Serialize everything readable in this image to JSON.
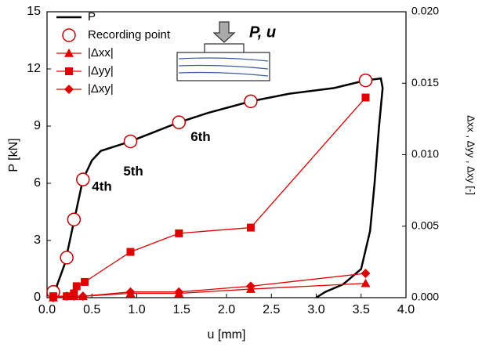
{
  "chart_data": {
    "type": "line",
    "xlabel": "u [mm]",
    "ylabel": "P [kN]",
    "y2label": "Δxx , Δyy , Δxy  [-]",
    "annotations": [
      "4th",
      "5th",
      "6th",
      "P, u"
    ],
    "xlim": [
      0,
      4
    ],
    "ylim": [
      0,
      15
    ],
    "y2lim": [
      0,
      0.02
    ],
    "xticks": [
      {
        "value": 0,
        "label": "0.0"
      },
      {
        "value": 0.5,
        "label": "0.5"
      },
      {
        "value": 1,
        "label": "1.0"
      },
      {
        "value": 1.5,
        "label": "1.5"
      },
      {
        "value": 2,
        "label": "2.0"
      },
      {
        "value": 2.5,
        "label": "2.5"
      },
      {
        "value": 3,
        "label": "3.0"
      },
      {
        "value": 3.5,
        "label": "3.5"
      },
      {
        "value": 4,
        "label": "4.0"
      }
    ],
    "yticks": [
      0,
      3,
      6,
      9,
      12,
      15
    ],
    "y2ticks": [
      {
        "value": 0,
        "label": "0.000"
      },
      {
        "value": 0.005,
        "label": "0.005"
      },
      {
        "value": 0.01,
        "label": "0.010"
      },
      {
        "value": 0.015,
        "label": "0.015"
      },
      {
        "value": 0.02,
        "label": "0.020"
      }
    ],
    "series": [
      {
        "name": "P",
        "color": "#000000",
        "marker": "none",
        "x": [
          0.05,
          0.1,
          0.2,
          0.3,
          0.4,
          0.5,
          0.6,
          0.8,
          0.93,
          1.2,
          1.47,
          1.8,
          2.27,
          2.7,
          3.2,
          3.55,
          3.72,
          3.74,
          3.7,
          3.65,
          3.6,
          3.5,
          3.3,
          3.1,
          3.0
        ],
        "values": [
          0,
          0.5,
          1.8,
          4.0,
          6.2,
          7.2,
          7.7,
          8.0,
          8.2,
          8.7,
          9.2,
          9.7,
          10.3,
          10.7,
          11.0,
          11.4,
          11.5,
          11.0,
          9.0,
          6.0,
          3.5,
          1.5,
          0.7,
          0.3,
          0
        ]
      },
      {
        "name": "Recording point",
        "color": "#c00000",
        "marker": "circle-open",
        "x": [
          0.07,
          0.22,
          0.3,
          0.4,
          0.93,
          1.47,
          2.27,
          3.55
        ],
        "values": [
          0.3,
          2.1,
          4.1,
          6.2,
          8.2,
          9.2,
          10.3,
          11.4
        ]
      },
      {
        "name": "|Δxx|",
        "color": "#e00000",
        "marker": "triangle",
        "axis": "y2",
        "x": [
          0.07,
          0.22,
          0.3,
          0.4,
          0.93,
          1.47,
          2.27,
          3.55
        ],
        "values": [
          0,
          0.0001,
          0.0001,
          0.0001,
          0.0003,
          0.0003,
          0.0006,
          0.001
        ]
      },
      {
        "name": "|Δyy|",
        "color": "#e00000",
        "marker": "square",
        "axis": "y2",
        "x": [
          0.07,
          0.22,
          0.3,
          0.33,
          0.42,
          0.93,
          1.47,
          2.27,
          3.55
        ],
        "values": [
          0.0001,
          0.0001,
          0.0003,
          0.0008,
          0.0011,
          0.0032,
          0.0045,
          0.0049,
          0.014
        ]
      },
      {
        "name": "|Δxy|",
        "color": "#e00000",
        "marker": "diamond",
        "axis": "y2",
        "x": [
          0.07,
          0.22,
          0.3,
          0.4,
          0.93,
          1.47,
          2.27,
          3.55
        ],
        "values": [
          0,
          0.0001,
          0.0001,
          0.0001,
          0.0004,
          0.0004,
          0.0008,
          0.0017
        ]
      }
    ]
  }
}
